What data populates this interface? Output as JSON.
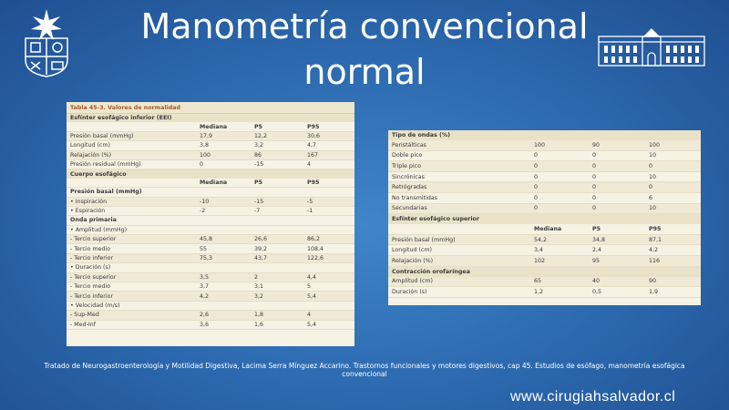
{
  "slide": {
    "title_line1": "Manometría convencional",
    "title_line2": "normal",
    "citation_line1": "Tratado de Neurogastroenterología y Motilidad Digestiva, Lacima Serra Mínguez Accarino. Trastornos funcionales y motores digestivos, cap 45. Estudios de esófago, manometría esofágica",
    "citation_line2": "convencional",
    "url": "www.cirugiahsalvador.cl"
  },
  "table1": {
    "caption": "Tabla 45-3.  Valores de normalidad",
    "section_eei": "Esfínter esofágico inferior (EEI)",
    "headers": [
      "",
      "Mediana",
      "P5",
      "P95"
    ],
    "eei_rows": [
      [
        "Presión basal (mmHg)",
        "17,9",
        "12,2",
        "30,6"
      ],
      [
        "Longitud (cm)",
        "3,8",
        "3,2",
        "4,7"
      ],
      [
        "Relajación (%)",
        "100",
        "86",
        "167"
      ],
      [
        "Presión residual (mmHg)",
        "0",
        "-15",
        "4"
      ]
    ],
    "section_body": "Cuerpo esofágico",
    "body_subheader": "Presión basal (mmHg)",
    "body_rows": [
      [
        "• Inspiración",
        "-10",
        "-15",
        "-5"
      ],
      [
        "• Espiración",
        "-2",
        "-7",
        "-1"
      ]
    ],
    "onda_label": "Onda primaria",
    "amplitud_label": "• Amplitud (mmHg)",
    "amplitud_rows": [
      [
        "- Tercio superior",
        "45,8",
        "26,6",
        "86,2"
      ],
      [
        "- Tercio medio",
        "55",
        "39,2",
        "108,4"
      ],
      [
        "- Tercio inferior",
        "75,3",
        "43,7",
        "122,6"
      ]
    ],
    "duracion_label": "• Duración (s)",
    "duracion_rows": [
      [
        "- Tercio superior",
        "3,5",
        "2",
        "4,4"
      ],
      [
        "- Tercio medio",
        "3,7",
        "3,1",
        "5"
      ],
      [
        "- Tercio inferior",
        "4,2",
        "3,2",
        "5,4"
      ]
    ],
    "velocidad_label": "• Velocidad (m/s)",
    "velocidad_rows": [
      [
        "- Sup-Med",
        "2,6",
        "1,8",
        "4"
      ],
      [
        "- Med-Inf",
        "3,6",
        "1,6",
        "5,4"
      ]
    ]
  },
  "table2": {
    "section_ondas": "Tipo de ondas (%)",
    "ondas_rows": [
      [
        "Peristálticas",
        "100",
        "90",
        "100"
      ],
      [
        "Doble pico",
        "0",
        "0",
        "10"
      ],
      [
        "Triple pico",
        "0",
        "0",
        "0"
      ],
      [
        "Sincrónicas",
        "0",
        "0",
        "10"
      ],
      [
        "Retrógradas",
        "0",
        "0",
        "0"
      ],
      [
        "No transmitidas",
        "0",
        "0",
        "6"
      ],
      [
        "Secundarias",
        "0",
        "0",
        "10"
      ]
    ],
    "section_ees": "Esfínter esofágico superior",
    "headers": [
      "",
      "Mediana",
      "P5",
      "P95"
    ],
    "ees_rows": [
      [
        "Presión basal (mmHg)",
        "54,2",
        "34,8",
        "87,1"
      ],
      [
        "Longitud (cm)",
        "3,4",
        "2,4",
        "4,2"
      ],
      [
        "Relajación (%)",
        "102",
        "95",
        "116"
      ]
    ],
    "section_oro": "Contracción orofaríngea",
    "oro_rows": [
      [
        "Amplitud (cm)",
        "65",
        "40",
        "90"
      ],
      [
        "Duración (s)",
        "1,2",
        "0,5",
        "1,9"
      ]
    ]
  }
}
